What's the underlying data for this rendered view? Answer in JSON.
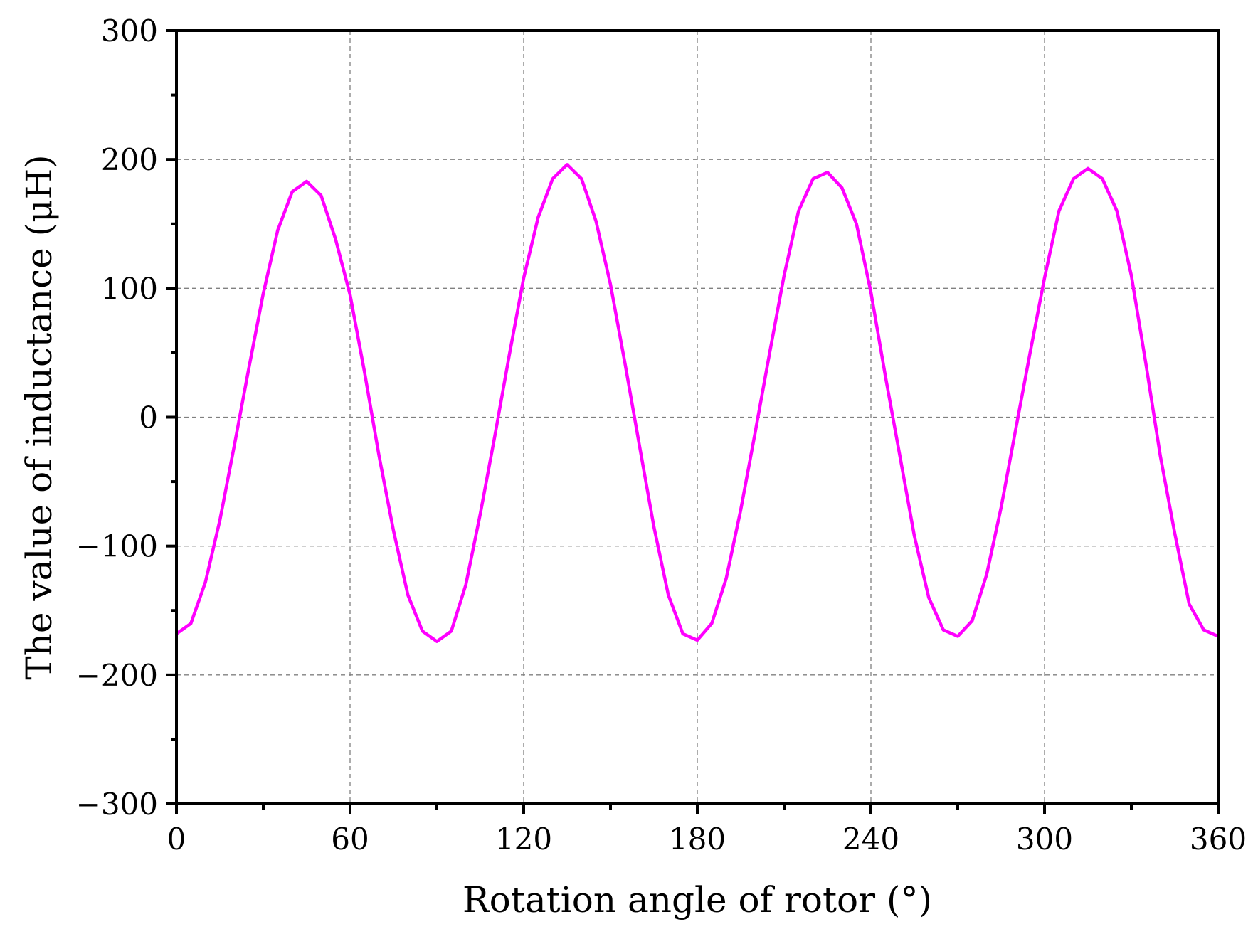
{
  "chart_data": {
    "type": "line",
    "title": "",
    "xlabel": "Rotation angle of rotor (°)",
    "ylabel": "The value of inductance (μH)",
    "xlim": [
      0,
      360
    ],
    "ylim": [
      -300,
      300
    ],
    "x_ticks": [
      0,
      60,
      120,
      180,
      240,
      300,
      360
    ],
    "x_tick_labels": [
      "0",
      "60",
      "120",
      "180",
      "240",
      "300",
      "360"
    ],
    "y_ticks": [
      -300,
      -200,
      -100,
      0,
      100,
      200,
      300
    ],
    "y_tick_labels": [
      "−300",
      "−200",
      "−100",
      "0",
      "100",
      "200",
      "300"
    ],
    "grid": true,
    "legend": "none",
    "colors": {
      "series": "#ff00ff",
      "grid": "#808080",
      "axis": "#000000"
    },
    "series": [
      {
        "x": [
          0,
          5,
          10,
          15,
          20,
          25,
          30,
          35,
          40,
          45,
          50,
          55,
          60,
          65,
          70,
          75,
          80,
          85,
          90,
          95,
          100,
          105,
          110,
          115,
          120,
          125,
          130,
          135,
          140,
          145,
          150,
          155,
          160,
          165,
          170,
          175,
          180,
          185,
          190,
          195,
          200,
          205,
          210,
          215,
          220,
          225,
          230,
          235,
          240,
          245,
          250,
          255,
          260,
          265,
          270,
          275,
          280,
          285,
          290,
          295,
          300,
          305,
          310,
          315,
          320,
          325,
          330,
          335,
          340,
          345,
          350,
          355,
          360
        ],
        "y": [
          -168,
          -160,
          -128,
          -80,
          -22,
          38,
          96,
          145,
          175,
          183,
          172,
          138,
          95,
          35,
          -30,
          -88,
          -138,
          -166,
          -174,
          -166,
          -130,
          -75,
          -15,
          48,
          108,
          155,
          185,
          196,
          185,
          152,
          103,
          42,
          -22,
          -85,
          -138,
          -168,
          -173,
          -160,
          -125,
          -72,
          -12,
          50,
          110,
          160,
          185,
          190,
          178,
          150,
          97,
          32,
          -30,
          -92,
          -140,
          -165,
          -170,
          -158,
          -122,
          -70,
          -10,
          50,
          108,
          160,
          185,
          193,
          185,
          160,
          110,
          42,
          -30,
          -90,
          -145,
          -165,
          -170
        ]
      }
    ]
  }
}
